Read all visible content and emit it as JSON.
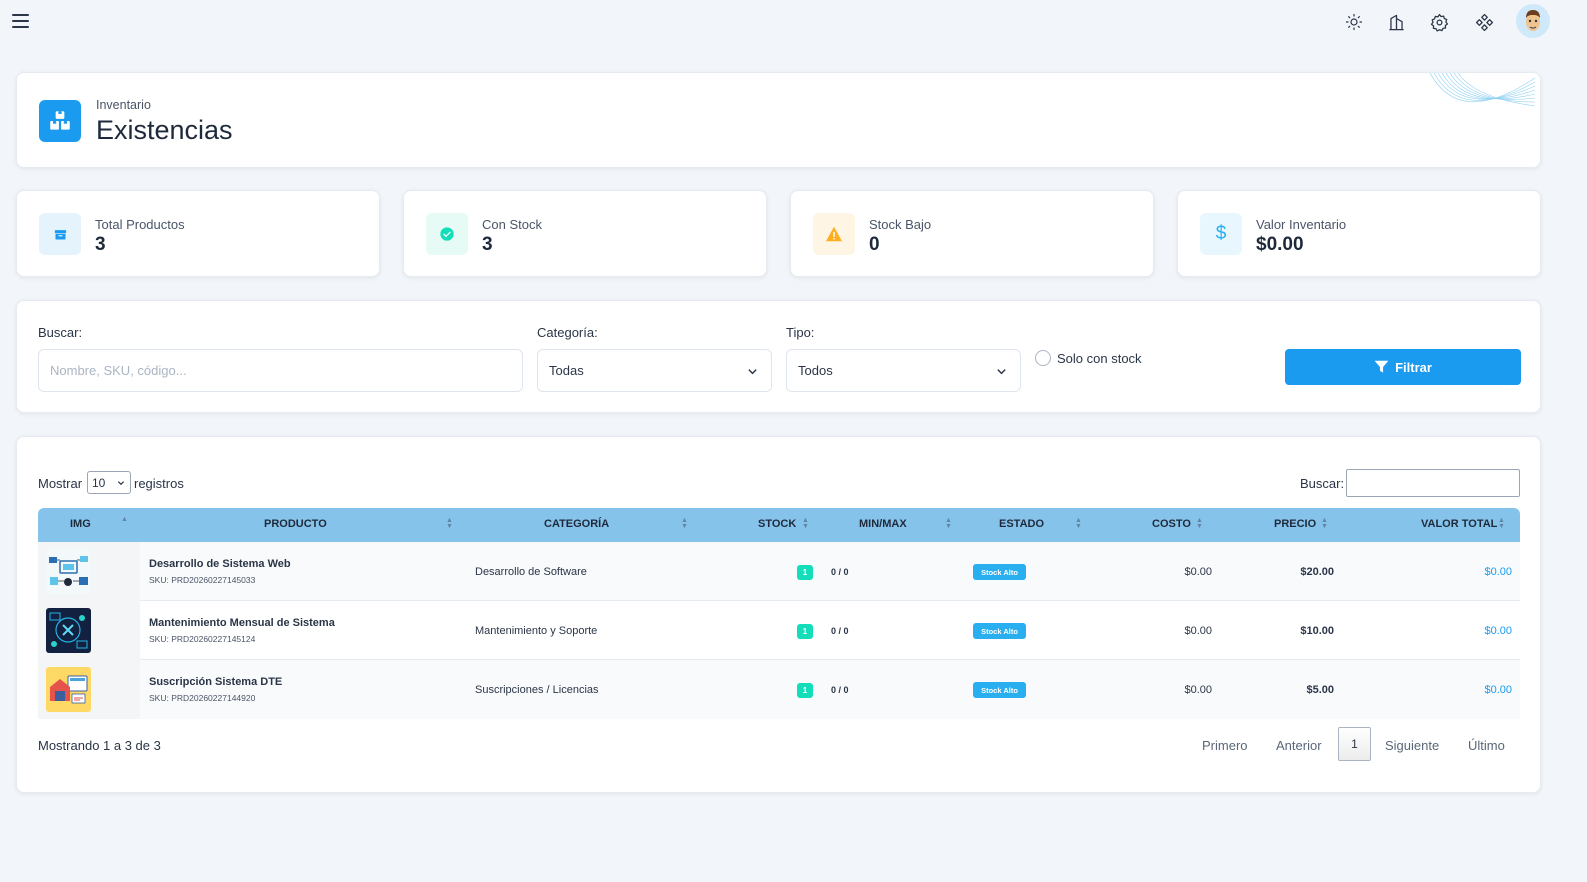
{
  "topbar": {
    "icons": [
      "menu-icon",
      "sun-icon",
      "building-icon",
      "gear-icon",
      "apps-icon"
    ],
    "avatar": "user-avatar"
  },
  "header": {
    "subtitle": "Inventario",
    "title": "Existencias",
    "icon": "boxes-icon"
  },
  "stats": [
    {
      "label": "Total Productos",
      "value": "3",
      "icon": "box-icon",
      "color": "#1a9bf0"
    },
    {
      "label": "Con Stock",
      "value": "3",
      "icon": "check-circle-icon",
      "color": "#13deb9"
    },
    {
      "label": "Stock Bajo",
      "value": "0",
      "icon": "warning-icon",
      "color": "#ffae1f"
    },
    {
      "label": "Valor Inventario",
      "value": "$0.00",
      "icon": "dollar-icon",
      "color": "#29aef0"
    }
  ],
  "filters": {
    "search_label": "Buscar:",
    "search_placeholder": "Nombre, SKU, código...",
    "category_label": "Categoría:",
    "category_value": "Todas",
    "type_label": "Tipo:",
    "type_value": "Todos",
    "only_stock_label": "Solo con stock",
    "filter_button": "Filtrar"
  },
  "table": {
    "show_label": "Mostrar",
    "page_length": "10",
    "records_label": "registros",
    "search_label": "Buscar:",
    "headers": [
      "IMG",
      "PRODUCTO",
      "CATEGORÍA",
      "STOCK",
      "MIN/MAX",
      "ESTADO",
      "COSTO",
      "PRECIO",
      "VALOR TOTAL"
    ],
    "rows": [
      {
        "name": "Desarrollo de Sistema Web",
        "sku": "SKU: PRD20260227145033",
        "category": "Desarrollo de Software",
        "stock": "1",
        "minmax": "0 / 0",
        "status": "Stock Alto",
        "cost": "$0.00",
        "price": "$20.00",
        "total": "$0.00"
      },
      {
        "name": "Mantenimiento Mensual de Sistema",
        "sku": "SKU: PRD20260227145124",
        "category": "Mantenimiento y Soporte",
        "stock": "1",
        "minmax": "0 / 0",
        "status": "Stock Alto",
        "cost": "$0.00",
        "price": "$10.00",
        "total": "$0.00"
      },
      {
        "name": "Suscripción Sistema DTE",
        "sku": "SKU: PRD20260227144920",
        "category": "Suscripciones / Licencias",
        "stock": "1",
        "minmax": "0 / 0",
        "status": "Stock Alto",
        "cost": "$0.00",
        "price": "$5.00",
        "total": "$0.00"
      }
    ],
    "info": "Mostrando 1 a 3 de 3",
    "pagination": {
      "first": "Primero",
      "prev": "Anterior",
      "current": "1",
      "next": "Siguiente",
      "last": "Último"
    }
  }
}
